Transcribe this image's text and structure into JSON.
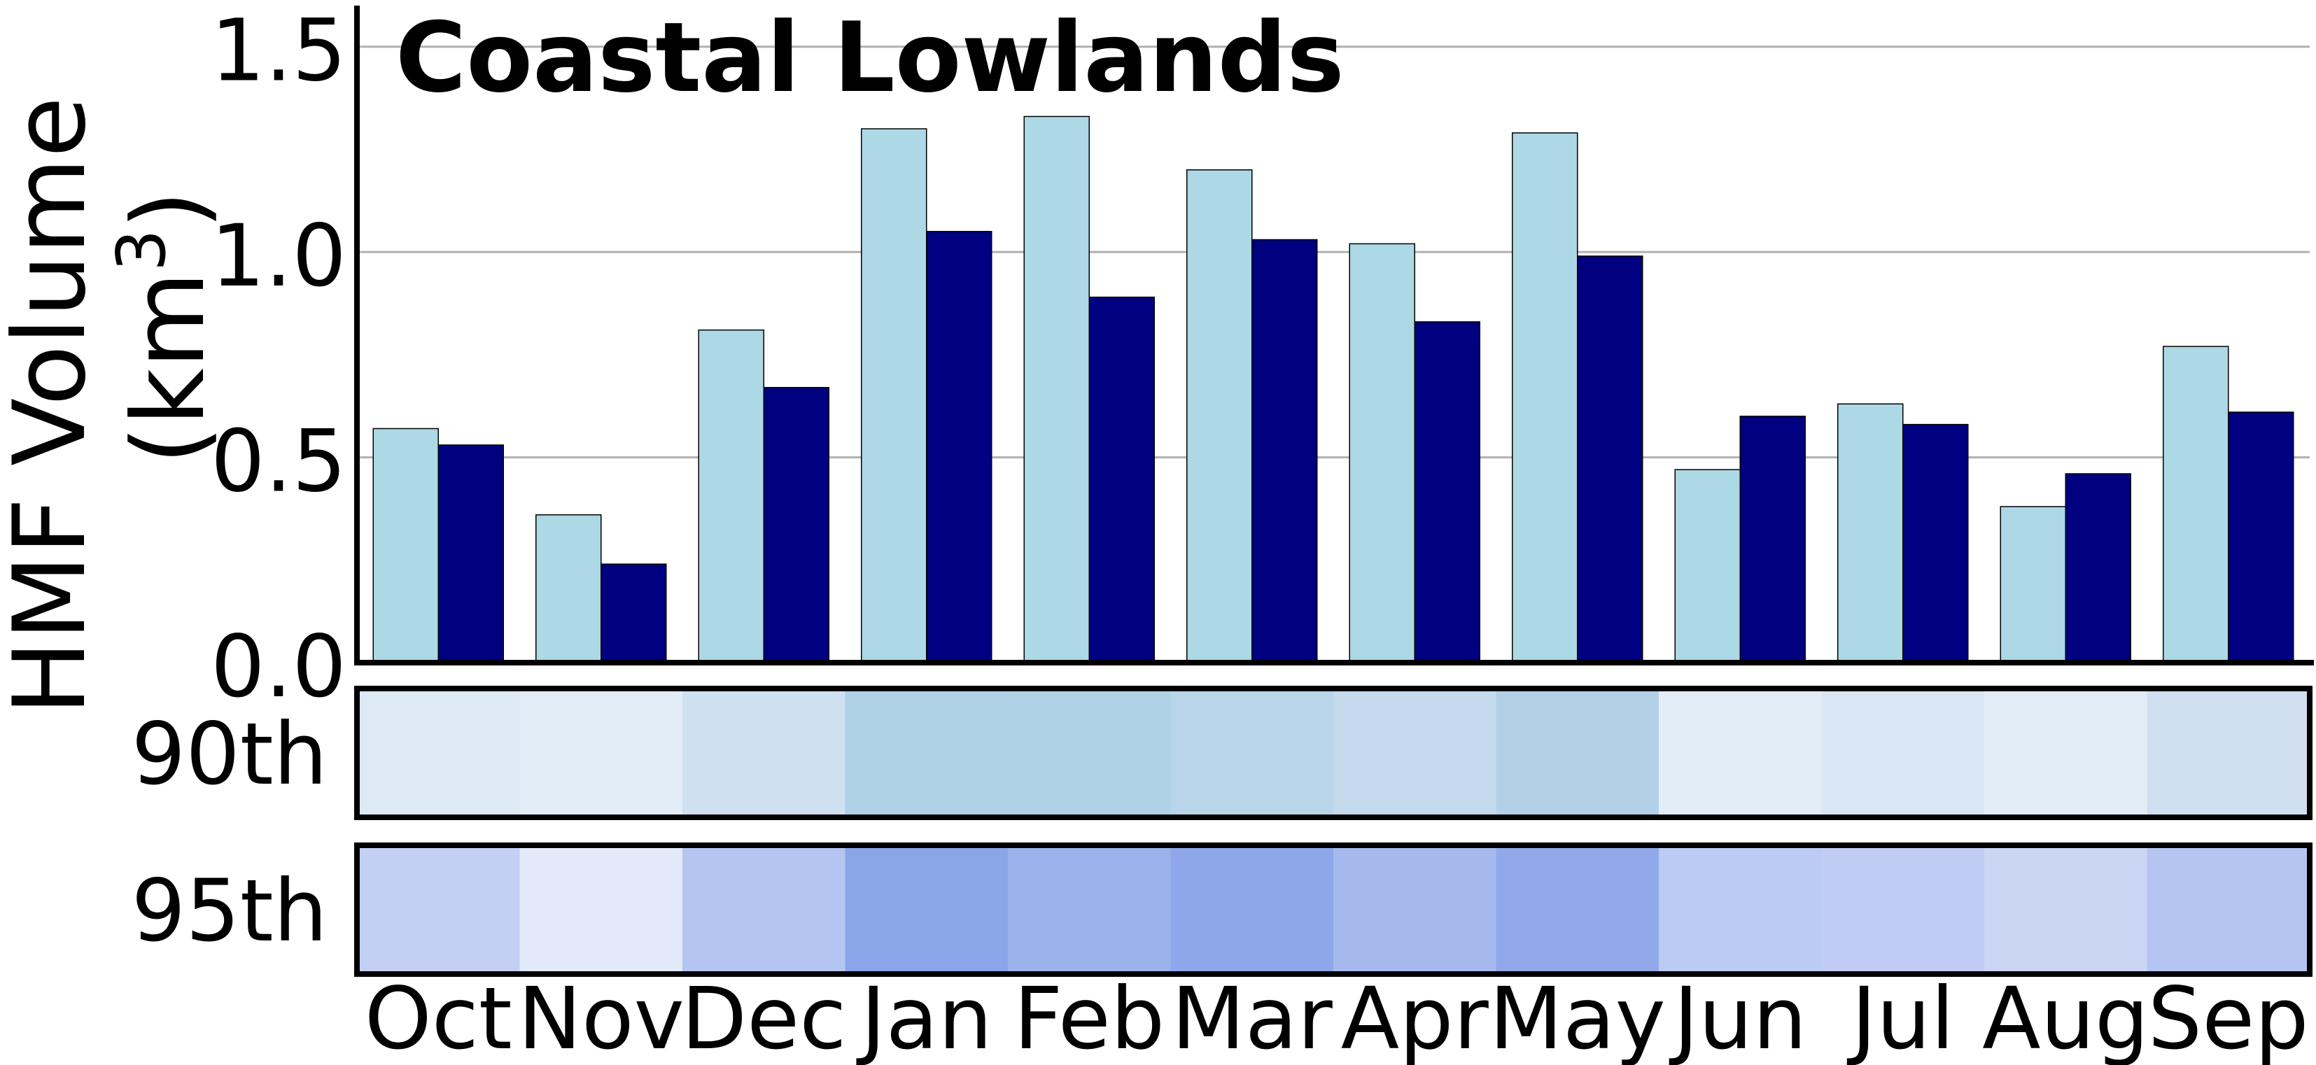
{
  "chart_data": {
    "type": "bar",
    "title": "Coastal Lowlands",
    "ylabel": "HMF Volume",
    "ylabel_unit": "(km",
    "ylabel_unit_exp": "3",
    "ylabel_unit_close": ")",
    "ylim": [
      0,
      1.6
    ],
    "yticks": [
      {
        "value": 0.0,
        "label": "0.0"
      },
      {
        "value": 0.5,
        "label": "0.5"
      },
      {
        "value": 1.0,
        "label": "1.0"
      },
      {
        "value": 1.5,
        "label": "1.5"
      }
    ],
    "grid": true,
    "categories": [
      "Oct",
      "Nov",
      "Dec",
      "Jan",
      "Feb",
      "Mar",
      "Apr",
      "May",
      "Jun",
      "Jul",
      "Aug",
      "Sep"
    ],
    "series": [
      {
        "color": "#add8e6",
        "values": [
          0.57,
          0.36,
          0.81,
          1.3,
          1.33,
          1.2,
          1.02,
          1.29,
          0.47,
          0.63,
          0.38,
          0.77
        ]
      },
      {
        "color": "#000080",
        "values": [
          0.53,
          0.24,
          0.67,
          1.05,
          0.89,
          1.03,
          0.83,
          0.99,
          0.6,
          0.58,
          0.46,
          0.61
        ]
      }
    ],
    "heatmap_rows": [
      {
        "label": "90th",
        "colors": [
          "#dde9f4",
          "#e3edf8",
          "#cfe0f1",
          "#afd1e5",
          "#b0d2e6",
          "#b8d5e9",
          "#c5daed",
          "#b2d1e8",
          "#e3edf8",
          "#d9e7f4",
          "#e3edf8",
          "#d0e0f1"
        ]
      },
      {
        "label": "95th",
        "colors": [
          "#c3d0f4",
          "#e2e9f9",
          "#b5c5f1",
          "#8ba5e9",
          "#9cb2ec",
          "#8ea7ea",
          "#a6b9ee",
          "#91a9ea",
          "#bccbf3",
          "#c0ccf3",
          "#cbd6f5",
          "#b5c4f1"
        ]
      }
    ]
  }
}
